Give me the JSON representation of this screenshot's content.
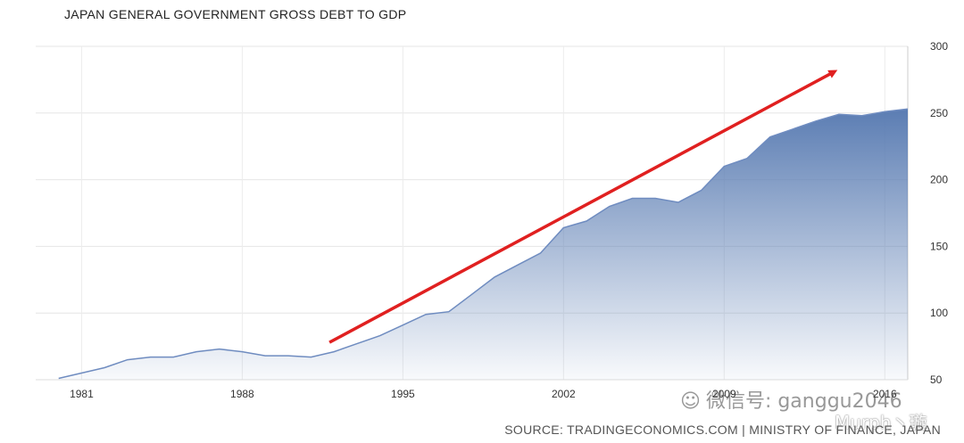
{
  "chart_data": {
    "type": "area",
    "title": "JAPAN GENERAL GOVERNMENT GROSS DEBT TO GDP",
    "source": "SOURCE: TRADINGECONOMICS.COM | MINISTRY OF FINANCE, JAPAN",
    "xlabel": "",
    "ylabel": "",
    "x_ticks": [
      "1981",
      "1988",
      "1995",
      "2002",
      "2009",
      "2016"
    ],
    "y_ticks": [
      50,
      100,
      150,
      200,
      250,
      300
    ],
    "ylim": [
      50,
      300
    ],
    "xlim": [
      1979,
      2017
    ],
    "series": [
      {
        "name": "Gross Debt to GDP",
        "x": [
          1980,
          1981,
          1982,
          1983,
          1984,
          1985,
          1986,
          1987,
          1988,
          1989,
          1990,
          1991,
          1992,
          1993,
          1994,
          1995,
          1996,
          1997,
          1998,
          1999,
          2000,
          2001,
          2002,
          2003,
          2004,
          2005,
          2006,
          2007,
          2008,
          2009,
          2010,
          2011,
          2012,
          2013,
          2014,
          2015,
          2016,
          2017
        ],
        "values": [
          51,
          55,
          59,
          65,
          67,
          67,
          71,
          73,
          71,
          68,
          68,
          67,
          71,
          77,
          83,
          91,
          99,
          101,
          114,
          127,
          136,
          145,
          164,
          169,
          180,
          186,
          186,
          183,
          192,
          210,
          216,
          232,
          238,
          244,
          249,
          248,
          251,
          253
        ]
      }
    ],
    "annotation": {
      "type": "trend-arrow",
      "color": "#e02020",
      "from": {
        "x": 1991.8,
        "y": 78
      },
      "to": {
        "x": 2013.8,
        "y": 281
      }
    },
    "grid": true,
    "fill_color": "#5b7db3"
  },
  "watermarks": {
    "wechat_icon": "wechat-icon",
    "wechat_text": "微信号: ganggu2046",
    "weibo_text": "Murph丶璇"
  }
}
